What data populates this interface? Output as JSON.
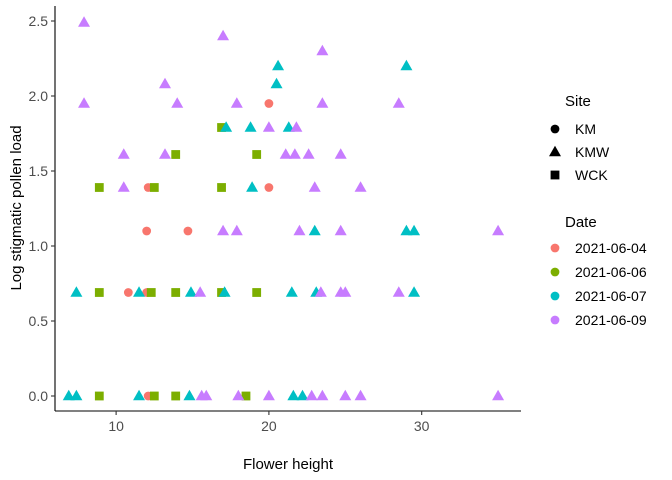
{
  "chart_data": {
    "type": "scatter",
    "xlabel": "Flower height",
    "ylabel": "Log stigmatic pollen load",
    "xlim": [
      6,
      36.5
    ],
    "ylim": [
      -0.1,
      2.6
    ],
    "x_ticks": [
      10,
      20,
      30
    ],
    "y_ticks": [
      0.0,
      0.5,
      1.0,
      1.5,
      2.0,
      2.5
    ],
    "y_tick_labels": [
      "0.0",
      "0.5",
      "1.0",
      "1.5",
      "2.0",
      "2.5"
    ],
    "grid": false,
    "legend_placement": "right",
    "shape_legend": {
      "title": "Site",
      "items": [
        {
          "label": "KM",
          "shape": "circle"
        },
        {
          "label": "KMW",
          "shape": "triangle"
        },
        {
          "label": "WCK",
          "shape": "square"
        }
      ]
    },
    "color_legend": {
      "title": "Date",
      "items": [
        {
          "label": "2021-06-04",
          "color": "#F8766D"
        },
        {
          "label": "2021-06-06",
          "color": "#7CAE00"
        },
        {
          "label": "2021-06-07",
          "color": "#00BFC4"
        },
        {
          "label": "2021-06-09",
          "color": "#C77CFF"
        }
      ]
    },
    "series": [
      {
        "date": "2021-06-04",
        "color": "#F8766D",
        "points": [
          {
            "x": 10.8,
            "y": 0.69,
            "site": "KM"
          },
          {
            "x": 12.0,
            "y": 0.69,
            "site": "KM"
          },
          {
            "x": 12.0,
            "y": 1.1,
            "site": "KM"
          },
          {
            "x": 12.1,
            "y": 1.39,
            "site": "KM"
          },
          {
            "x": 14.7,
            "y": 1.1,
            "site": "KM"
          },
          {
            "x": 20.0,
            "y": 1.95,
            "site": "KM"
          },
          {
            "x": 20.0,
            "y": 1.39,
            "site": "KM"
          },
          {
            "x": 12.1,
            "y": 0.0,
            "site": "KM"
          }
        ]
      },
      {
        "date": "2021-06-06",
        "color": "#7CAE00",
        "points": [
          {
            "x": 8.9,
            "y": 1.39,
            "site": "WCK"
          },
          {
            "x": 8.9,
            "y": 0.69,
            "site": "WCK"
          },
          {
            "x": 8.9,
            "y": 0.0,
            "site": "WCK"
          },
          {
            "x": 12.3,
            "y": 0.69,
            "site": "WCK"
          },
          {
            "x": 12.5,
            "y": 1.39,
            "site": "WCK"
          },
          {
            "x": 12.5,
            "y": 0.0,
            "site": "WCK"
          },
          {
            "x": 13.9,
            "y": 1.61,
            "site": "WCK"
          },
          {
            "x": 13.9,
            "y": 0.69,
            "site": "WCK"
          },
          {
            "x": 13.9,
            "y": 0.0,
            "site": "WCK"
          },
          {
            "x": 16.9,
            "y": 1.79,
            "site": "WCK"
          },
          {
            "x": 16.9,
            "y": 1.39,
            "site": "WCK"
          },
          {
            "x": 16.9,
            "y": 0.69,
            "site": "WCK"
          },
          {
            "x": 18.5,
            "y": 0.0,
            "site": "WCK"
          },
          {
            "x": 19.2,
            "y": 1.61,
            "site": "WCK"
          },
          {
            "x": 19.2,
            "y": 0.69,
            "site": "WCK"
          }
        ]
      },
      {
        "date": "2021-06-07",
        "color": "#00BFC4",
        "points": [
          {
            "x": 6.9,
            "y": 0.0,
            "site": "KMW"
          },
          {
            "x": 7.4,
            "y": 0.0,
            "site": "KMW"
          },
          {
            "x": 7.4,
            "y": 0.69,
            "site": "KMW"
          },
          {
            "x": 11.5,
            "y": 0.0,
            "site": "KMW"
          },
          {
            "x": 11.5,
            "y": 0.69,
            "site": "KMW"
          },
          {
            "x": 14.8,
            "y": 0.0,
            "site": "KMW"
          },
          {
            "x": 14.9,
            "y": 0.69,
            "site": "KMW"
          },
          {
            "x": 17.1,
            "y": 0.69,
            "site": "KMW"
          },
          {
            "x": 17.2,
            "y": 1.79,
            "site": "KMW"
          },
          {
            "x": 18.8,
            "y": 1.79,
            "site": "KMW"
          },
          {
            "x": 18.9,
            "y": 1.39,
            "site": "KMW"
          },
          {
            "x": 20.5,
            "y": 2.08,
            "site": "KMW"
          },
          {
            "x": 20.6,
            "y": 2.2,
            "site": "KMW"
          },
          {
            "x": 21.3,
            "y": 1.79,
            "site": "KMW"
          },
          {
            "x": 21.5,
            "y": 0.69,
            "site": "KMW"
          },
          {
            "x": 21.6,
            "y": 0.0,
            "site": "KMW"
          },
          {
            "x": 22.2,
            "y": 0.0,
            "site": "KMW"
          },
          {
            "x": 23.0,
            "y": 1.1,
            "site": "KMW"
          },
          {
            "x": 23.1,
            "y": 0.69,
            "site": "KMW"
          },
          {
            "x": 29.0,
            "y": 2.2,
            "site": "KMW"
          },
          {
            "x": 29.0,
            "y": 1.1,
            "site": "KMW"
          },
          {
            "x": 29.5,
            "y": 1.1,
            "site": "KMW"
          },
          {
            "x": 29.5,
            "y": 0.69,
            "site": "KMW"
          }
        ]
      },
      {
        "date": "2021-06-09",
        "color": "#C77CFF",
        "points": [
          {
            "x": 7.9,
            "y": 2.49,
            "site": "KMW"
          },
          {
            "x": 7.9,
            "y": 1.95,
            "site": "KMW"
          },
          {
            "x": 10.5,
            "y": 1.61,
            "site": "KMW"
          },
          {
            "x": 10.5,
            "y": 1.39,
            "site": "KMW"
          },
          {
            "x": 13.2,
            "y": 2.08,
            "site": "KMW"
          },
          {
            "x": 13.2,
            "y": 1.61,
            "site": "KMW"
          },
          {
            "x": 14.0,
            "y": 1.95,
            "site": "KMW"
          },
          {
            "x": 15.5,
            "y": 0.69,
            "site": "KMW"
          },
          {
            "x": 15.6,
            "y": 0.0,
            "site": "KMW"
          },
          {
            "x": 15.9,
            "y": 0.0,
            "site": "KMW"
          },
          {
            "x": 17.0,
            "y": 2.4,
            "site": "KMW"
          },
          {
            "x": 17.0,
            "y": 1.1,
            "site": "KMW"
          },
          {
            "x": 17.9,
            "y": 1.95,
            "site": "KMW"
          },
          {
            "x": 17.9,
            "y": 1.1,
            "site": "KMW"
          },
          {
            "x": 18.0,
            "y": 0.0,
            "site": "KMW"
          },
          {
            "x": 20.0,
            "y": 1.79,
            "site": "KMW"
          },
          {
            "x": 20.0,
            "y": 0.0,
            "site": "KMW"
          },
          {
            "x": 21.1,
            "y": 1.61,
            "site": "KMW"
          },
          {
            "x": 21.7,
            "y": 1.61,
            "site": "KMW"
          },
          {
            "x": 21.8,
            "y": 1.79,
            "site": "KMW"
          },
          {
            "x": 22.0,
            "y": 1.1,
            "site": "KMW"
          },
          {
            "x": 22.6,
            "y": 1.61,
            "site": "KMW"
          },
          {
            "x": 22.8,
            "y": 0.0,
            "site": "KMW"
          },
          {
            "x": 23.0,
            "y": 1.39,
            "site": "KMW"
          },
          {
            "x": 23.4,
            "y": 0.69,
            "site": "KMW"
          },
          {
            "x": 23.5,
            "y": 2.3,
            "site": "KMW"
          },
          {
            "x": 23.5,
            "y": 1.95,
            "site": "KMW"
          },
          {
            "x": 23.5,
            "y": 0.0,
            "site": "KMW"
          },
          {
            "x": 24.7,
            "y": 1.61,
            "site": "KMW"
          },
          {
            "x": 24.7,
            "y": 1.1,
            "site": "KMW"
          },
          {
            "x": 24.7,
            "y": 0.69,
            "site": "KMW"
          },
          {
            "x": 25.0,
            "y": 0.69,
            "site": "KMW"
          },
          {
            "x": 25.0,
            "y": 0.0,
            "site": "KMW"
          },
          {
            "x": 26.0,
            "y": 1.39,
            "site": "KMW"
          },
          {
            "x": 26.0,
            "y": 0.0,
            "site": "KMW"
          },
          {
            "x": 28.5,
            "y": 1.95,
            "site": "KMW"
          },
          {
            "x": 28.5,
            "y": 0.69,
            "site": "KMW"
          },
          {
            "x": 35.0,
            "y": 1.1,
            "site": "KMW"
          },
          {
            "x": 35.0,
            "y": 0.0,
            "site": "KMW"
          }
        ]
      }
    ]
  }
}
